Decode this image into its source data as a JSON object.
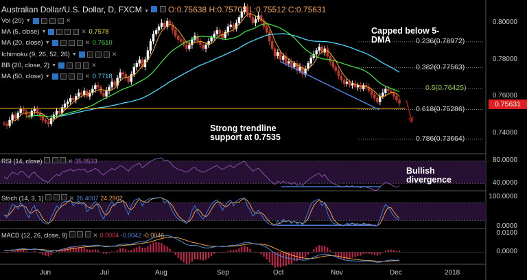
{
  "header": {
    "symbol": "Australian Dollar/U.S. Dollar, D, FXCM",
    "open": "O:0.75638",
    "high": "H:0.75703",
    "low": "L:0.75512",
    "close": "C:0.75631"
  },
  "indicators": [
    {
      "label": "Vol (20)",
      "value": "",
      "color": "#dddddd"
    },
    {
      "label": "MA (5, close)",
      "value": "0.7578",
      "color": "#f5e51f"
    },
    {
      "label": "MA (20, close)",
      "value": "0.7610",
      "color": "#3fe03f"
    },
    {
      "label": "Ichimoku (9, 26, 52, 26)",
      "value": "",
      "color": "#dddddd"
    },
    {
      "label": "BB (20, close, 2)",
      "value": "",
      "color": "#dddddd"
    },
    {
      "label": "MA (50, close)",
      "value": "0.7718",
      "color": "#4fd8ff"
    }
  ],
  "annotations": {
    "capped": "Capped below 5-DMA",
    "trendline": "Strong trendline support at 0.7535",
    "divergence": "Bullish divergence"
  },
  "price_tag": "0.75631",
  "panes": {
    "rsi": {
      "label": "RSI (14, close)",
      "value": "35.9533"
    },
    "stoch": {
      "label": "Stoch (14, 3, 1)",
      "k": "26.4007",
      "d": "24.2902"
    },
    "macd": {
      "label": "MACD (12, 26, close, 9)",
      "hist": "0.0004",
      "macd": "-0.0042",
      "signal": "-0.0046"
    }
  },
  "colors": {
    "bg": "#000000",
    "up": "#ffffff",
    "down": "#c0392b",
    "ma5": "#f5a623",
    "ma20": "#3fe03f",
    "ma50": "#4fd8ff",
    "support": "#f5a623",
    "trend": "#4a7fe0",
    "rsi": "#8a4fa8",
    "stochK": "#3b7de0",
    "stochD": "#f0a040",
    "macdLine": "#4f8fe0",
    "signal": "#f0a040",
    "hist": "#d02050"
  },
  "chart_data": [
    {
      "type": "candlestick",
      "title": "Australian Dollar/U.S. Dollar, D, FXCM",
      "x_ticks": [
        "Jun",
        "Jul",
        "Aug",
        "Sep",
        "Oct",
        "Nov",
        "Dec",
        "2018"
      ],
      "y_ticks": [
        "0.80000",
        "0.78000",
        "0.76000",
        "0.74000"
      ],
      "ylim": [
        0.7295,
        0.8125
      ],
      "close": [
        0.745,
        0.744,
        0.747,
        0.75,
        0.748,
        0.751,
        0.753,
        0.752,
        0.75,
        0.749,
        0.752,
        0.753,
        0.751,
        0.749,
        0.747,
        0.746,
        0.745,
        0.748,
        0.75,
        0.752,
        0.751,
        0.754,
        0.756,
        0.757,
        0.759,
        0.758,
        0.76,
        0.762,
        0.761,
        0.763,
        0.76,
        0.762,
        0.764,
        0.766,
        0.765,
        0.762,
        0.76,
        0.763,
        0.765,
        0.768,
        0.766,
        0.77,
        0.773,
        0.772,
        0.77,
        0.768,
        0.772,
        0.776,
        0.778,
        0.78,
        0.776,
        0.78,
        0.785,
        0.79,
        0.794,
        0.796,
        0.798,
        0.8,
        0.798,
        0.801,
        0.799,
        0.796,
        0.793,
        0.791,
        0.79,
        0.788,
        0.786,
        0.788,
        0.791,
        0.793,
        0.79,
        0.788,
        0.786,
        0.788,
        0.79,
        0.792,
        0.794,
        0.796,
        0.794,
        0.792,
        0.795,
        0.798,
        0.799,
        0.797,
        0.8,
        0.803,
        0.806,
        0.809,
        0.805,
        0.803,
        0.8,
        0.802,
        0.804,
        0.801,
        0.798,
        0.795,
        0.79,
        0.786,
        0.782,
        0.784,
        0.78,
        0.782,
        0.778,
        0.779,
        0.776,
        0.778,
        0.774,
        0.776,
        0.772,
        0.775,
        0.778,
        0.781,
        0.783,
        0.785,
        0.787,
        0.784,
        0.786,
        0.782,
        0.779,
        0.776,
        0.774,
        0.771,
        0.769,
        0.767,
        0.768,
        0.766,
        0.767,
        0.765,
        0.766,
        0.764,
        0.766,
        0.765,
        0.763,
        0.761,
        0.759,
        0.757,
        0.76,
        0.762,
        0.764,
        0.763,
        0.762,
        0.76,
        0.758,
        0.7563
      ],
      "support_level": 0.7535,
      "fibonacci": [
        {
          "label": "0.236(0.78972)",
          "value": 0.78972
        },
        {
          "label": "0.382(0.77563)",
          "value": 0.77563
        },
        {
          "label": "0.5(0.76425)",
          "value": 0.76425
        },
        {
          "label": "0.618(0.75286)",
          "value": 0.75286
        },
        {
          "label": "0.786(0.73664)",
          "value": 0.73664
        }
      ]
    },
    {
      "type": "line",
      "name": "RSI (14, close)",
      "y_ticks": [
        "80.0000",
        "40.0000"
      ],
      "ylim": [
        28,
        92
      ],
      "values": [
        52,
        48,
        55,
        60,
        58,
        56,
        62,
        60,
        55,
        50,
        58,
        60,
        54,
        50,
        46,
        44,
        42,
        48,
        52,
        56,
        54,
        60,
        62,
        63,
        66,
        62,
        64,
        66,
        64,
        66,
        60,
        62,
        64,
        67,
        64,
        58,
        55,
        60,
        63,
        67,
        64,
        68,
        72,
        70,
        66,
        62,
        68,
        72,
        74,
        76,
        68,
        72,
        76,
        80,
        82,
        84,
        85,
        86,
        80,
        82,
        78,
        72,
        68,
        65,
        64,
        62,
        60,
        63,
        67,
        69,
        64,
        62,
        60,
        62,
        65,
        67,
        70,
        72,
        68,
        65,
        68,
        71,
        72,
        68,
        72,
        75,
        78,
        80,
        72,
        68,
        62,
        65,
        67,
        62,
        56,
        52,
        46,
        42,
        38,
        44,
        40,
        44,
        40,
        42,
        38,
        42,
        36,
        40,
        36,
        42,
        46,
        50,
        53,
        56,
        58,
        52,
        56,
        48,
        44,
        40,
        38,
        36,
        34,
        33,
        36,
        34,
        36,
        33,
        35,
        32,
        35,
        33,
        32,
        30,
        28,
        27,
        34,
        38,
        42,
        40,
        38,
        35,
        33,
        36
      ]
    },
    {
      "type": "line",
      "name": "Stoch (14, 3, 1)",
      "y_ticks": [
        "100.0000",
        "0.0000"
      ],
      "ylim": [
        0,
        100
      ],
      "values": [
        40,
        30,
        55,
        75,
        70,
        60,
        80,
        70,
        45,
        30,
        60,
        70,
        40,
        25,
        15,
        10,
        8,
        30,
        50,
        70,
        60,
        80,
        85,
        85,
        90,
        70,
        80,
        85,
        75,
        80,
        50,
        60,
        75,
        85,
        70,
        40,
        25,
        50,
        70,
        85,
        70,
        85,
        92,
        85,
        60,
        40,
        70,
        88,
        92,
        95,
        70,
        85,
        92,
        95,
        96,
        97,
        98,
        98,
        80,
        88,
        70,
        50,
        35,
        25,
        20,
        15,
        10,
        25,
        55,
        70,
        50,
        35,
        25,
        40,
        60,
        75,
        85,
        90,
        75,
        55,
        70,
        85,
        88,
        70,
        85,
        92,
        95,
        97,
        70,
        55,
        35,
        45,
        55,
        40,
        25,
        15,
        8,
        5,
        3,
        20,
        10,
        25,
        15,
        20,
        10,
        20,
        8,
        15,
        6,
        25,
        50,
        75,
        85,
        90,
        92,
        70,
        80,
        45,
        25,
        12,
        8,
        5,
        3,
        2,
        12,
        8,
        12,
        5,
        10,
        3,
        12,
        8,
        5,
        3,
        2,
        2,
        25,
        55,
        75,
        65,
        50,
        35,
        26,
        24
      ]
    },
    {
      "type": "line",
      "name": "MACD (12, 26, close, 9)",
      "y_ticks": [
        "0.0100",
        "0.0000"
      ],
      "ylim": [
        -0.006,
        0.012
      ],
      "values": [
        0.001,
        0.0008,
        0.0009,
        0.0012,
        0.0012,
        0.0014,
        0.0017,
        0.0018,
        0.0016,
        0.0014,
        0.0015,
        0.0017,
        0.0015,
        0.0012,
        0.0008,
        0.0005,
        0.0002,
        0.0003,
        0.0006,
        0.001,
        0.0011,
        0.0015,
        0.0019,
        0.0022,
        0.0026,
        0.0027,
        0.0029,
        0.0032,
        0.0033,
        0.0035,
        0.0033,
        0.0033,
        0.0034,
        0.0036,
        0.0036,
        0.0033,
        0.0029,
        0.0028,
        0.0029,
        0.0032,
        0.0032,
        0.0035,
        0.004,
        0.0042,
        0.0042,
        0.004,
        0.0042,
        0.0046,
        0.005,
        0.0055,
        0.0054,
        0.0056,
        0.0061,
        0.0068,
        0.0075,
        0.008,
        0.0084,
        0.0087,
        0.0086,
        0.0086,
        0.0084,
        0.0079,
        0.0072,
        0.0064,
        0.0056,
        0.0048,
        0.004,
        0.0036,
        0.0035,
        0.0036,
        0.0033,
        0.0029,
        0.0024,
        0.0022,
        0.0022,
        0.0024,
        0.0027,
        0.003,
        0.003,
        0.0028,
        0.0029,
        0.0032,
        0.0035,
        0.0035,
        0.0037,
        0.0041,
        0.0046,
        0.0051,
        0.0051,
        0.0049,
        0.0044,
        0.0042,
        0.0042,
        0.0038,
        0.0032,
        0.0024,
        0.0014,
        0.0003,
        -0.0008,
        -0.0013,
        -0.002,
        -0.0024,
        -0.003,
        -0.0032,
        -0.0036,
        -0.0036,
        -0.004,
        -0.004,
        -0.0043,
        -0.0042,
        -0.0038,
        -0.0033,
        -0.0027,
        -0.0021,
        -0.0015,
        -0.0013,
        -0.001,
        -0.0011,
        -0.0015,
        -0.002,
        -0.0025,
        -0.0031,
        -0.0036,
        -0.0041,
        -0.0043,
        -0.0045,
        -0.0046,
        -0.0047,
        -0.0047,
        -0.0048,
        -0.0046,
        -0.0046,
        -0.0047,
        -0.0049,
        -0.0051,
        -0.0054,
        -0.0053,
        -0.005,
        -0.0046,
        -0.0043,
        -0.0042,
        -0.0042,
        -0.0043,
        -0.0042
      ]
    }
  ]
}
